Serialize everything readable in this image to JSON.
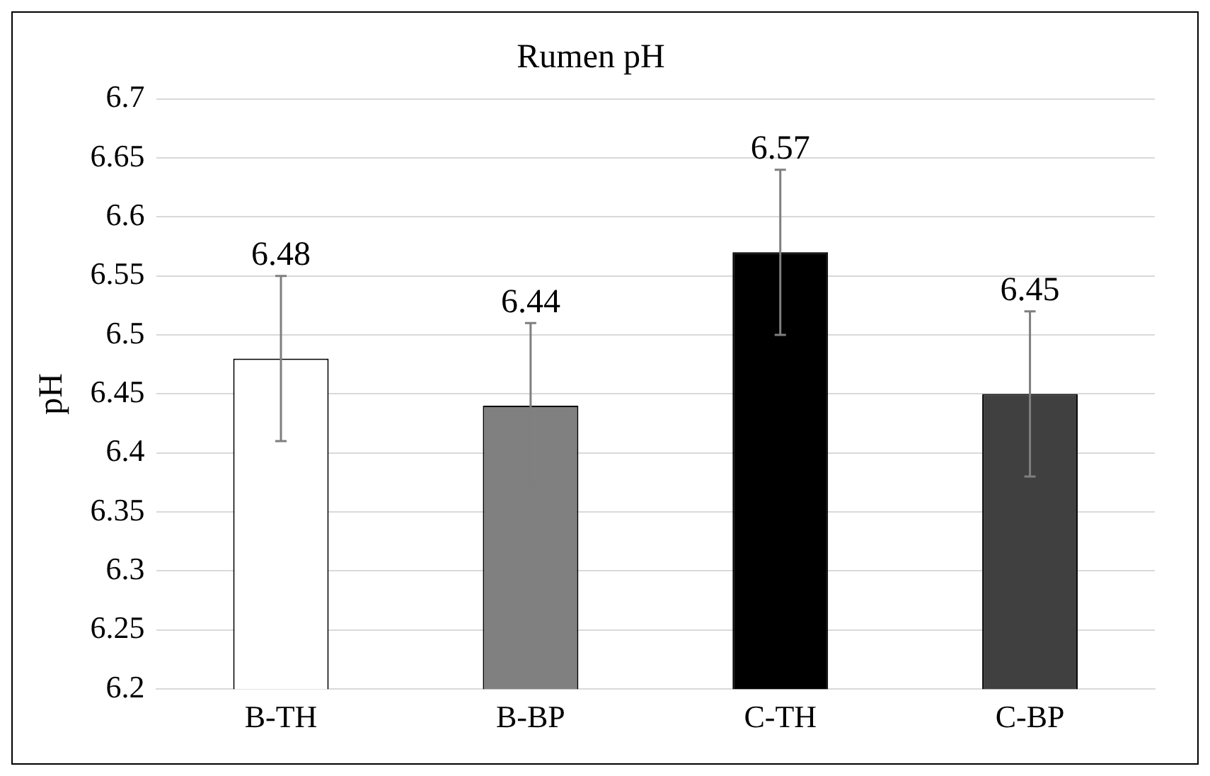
{
  "chart_data": {
    "type": "bar",
    "title": "Rumen pH",
    "ylabel": "pH",
    "categories": [
      "B-TH",
      "B-BP",
      "C-TH",
      "C-BP"
    ],
    "values": [
      6.48,
      6.44,
      6.57,
      6.45
    ],
    "colors": [
      "#ffffff",
      "#808080",
      "#000000",
      "#404040"
    ],
    "errors": [
      0.07,
      0.07,
      0.07,
      0.07
    ],
    "ylim": [
      6.2,
      6.7
    ],
    "yticks": [
      6.2,
      6.25,
      6.3,
      6.35,
      6.4,
      6.45,
      6.5,
      6.55,
      6.6,
      6.65,
      6.7
    ],
    "grid": "y",
    "legend": false,
    "data_labels": true
  }
}
